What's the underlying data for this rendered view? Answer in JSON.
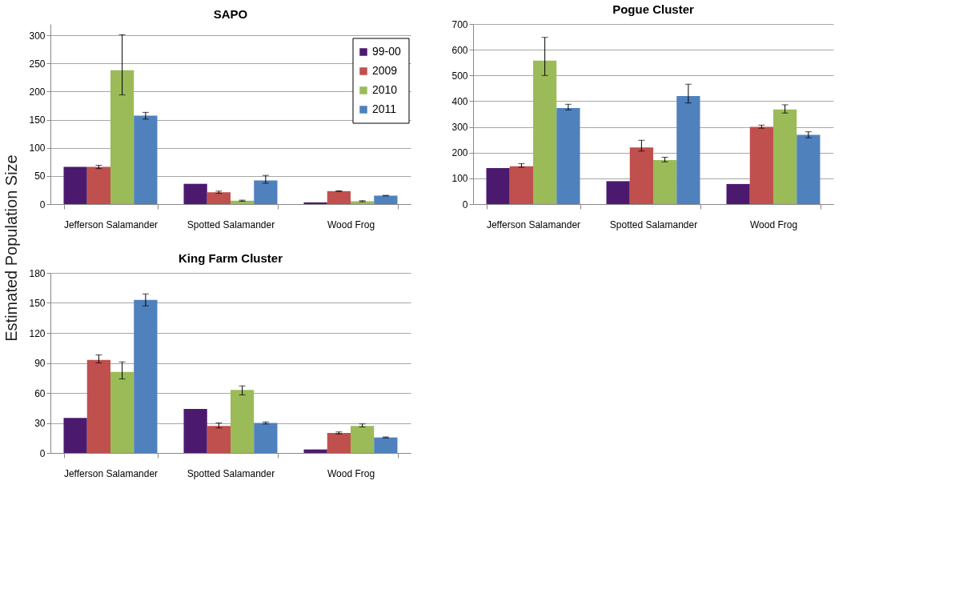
{
  "chart_data": [
    {
      "type": "bar",
      "title": "SAPO",
      "ylabel": "Estimated Population Size",
      "categories": [
        "Jefferson Salamander",
        "Spotted Salamander",
        "Wood Frog"
      ],
      "ylim": [
        0,
        320
      ],
      "yticks": [
        0,
        50,
        100,
        150,
        200,
        250,
        300
      ],
      "grid": "y",
      "legend": "top right",
      "series": [
        {
          "name": "99-00",
          "color": "#4b1a6e",
          "values": [
            66,
            36,
            3
          ]
        },
        {
          "name": "2009",
          "color": "#c0504d",
          "values": [
            66,
            21,
            23
          ],
          "errors": [
            3,
            2,
            0.5
          ]
        },
        {
          "name": "2010",
          "color": "#9bbb59",
          "values": [
            238,
            6,
            5
          ],
          "errors": [
            [
              194,
              301
            ],
            1,
            1
          ]
        },
        {
          "name": "2011",
          "color": "#4f81bd",
          "values": [
            157,
            42,
            15
          ],
          "errors": [
            6,
            [
              37,
              51
            ],
            0.5
          ]
        }
      ]
    },
    {
      "type": "bar",
      "title": "Pogue Cluster",
      "categories": [
        "Jefferson Salamander",
        "Spotted Salamander",
        "Wood Frog"
      ],
      "ylim": [
        0,
        700
      ],
      "yticks": [
        0,
        100,
        200,
        300,
        400,
        500,
        600,
        700
      ],
      "grid": "y",
      "legend": false,
      "series": [
        {
          "color": "#4b1a6e",
          "values": [
            140,
            89,
            78
          ]
        },
        {
          "color": "#c0504d",
          "values": [
            147,
            220,
            300
          ],
          "errors": [
            [
              143,
              157
            ],
            [
              206,
              248
            ],
            [
              295,
              307
            ]
          ]
        },
        {
          "color": "#9bbb59",
          "values": [
            558,
            171,
            368
          ],
          "errors": [
            [
              500,
              648
            ],
            [
              164,
              182
            ],
            [
              354,
              386
            ]
          ]
        },
        {
          "color": "#4f81bd",
          "values": [
            373,
            420,
            269
          ],
          "errors": [
            [
              366,
              388
            ],
            [
              393,
              466
            ],
            [
              258,
              281
            ]
          ]
        }
      ]
    },
    {
      "type": "bar",
      "title": "King Farm Cluster",
      "categories": [
        "Jefferson Salamander",
        "Spotted Salamander",
        "Wood Frog"
      ],
      "ylim": [
        0,
        180
      ],
      "yticks": [
        0,
        30,
        60,
        90,
        120,
        150,
        180
      ],
      "grid": "y",
      "legend": false,
      "series": [
        {
          "color": "#4b1a6e",
          "values": [
            35,
            44,
            3.5
          ]
        },
        {
          "color": "#c0504d",
          "values": [
            93,
            27,
            20
          ],
          "errors": [
            [
              90,
              98
            ],
            [
              25,
              30
            ],
            [
              19,
              21
            ]
          ]
        },
        {
          "color": "#9bbb59",
          "values": [
            81,
            63,
            27
          ],
          "errors": [
            [
              74,
              91
            ],
            [
              58,
              67
            ],
            [
              26,
              29
            ]
          ]
        },
        {
          "color": "#4f81bd",
          "values": [
            153,
            30,
            15.5
          ],
          "errors": [
            [
              147,
              159
            ],
            [
              29,
              31
            ],
            [
              15,
              16
            ]
          ]
        }
      ]
    }
  ]
}
